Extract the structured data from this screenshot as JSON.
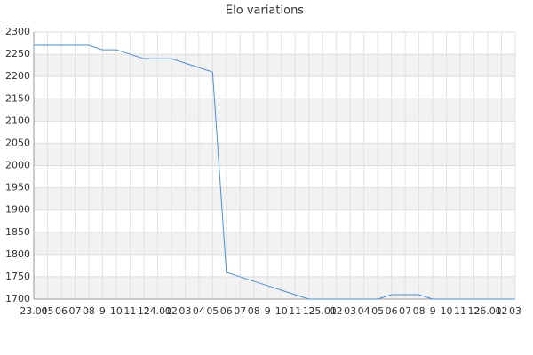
{
  "chart_data": {
    "type": "line",
    "title": "Elo variations",
    "categories": [
      "23.04",
      "05",
      "06",
      "07",
      "08",
      "9",
      "10",
      "11",
      "12",
      "24.01",
      "02",
      "03",
      "04",
      "05",
      "06",
      "07",
      "08",
      "9",
      "10",
      "11",
      "12",
      "25.01",
      "02",
      "03",
      "04",
      "05",
      "06",
      "07",
      "08",
      "9",
      "10",
      "11",
      "12",
      "26.01",
      "02",
      "03"
    ],
    "values": [
      2270,
      2270,
      2270,
      2270,
      2270,
      2260,
      2260,
      2250,
      2240,
      2240,
      2240,
      2230,
      2220,
      2210,
      1760,
      1750,
      1740,
      1730,
      1720,
      1710,
      1700,
      1700,
      1700,
      1700,
      1700,
      1700,
      1710,
      1710,
      1710,
      1700,
      1700,
      1700,
      1700,
      1700,
      1700,
      1700
    ],
    "color": "#4a8fdc",
    "ylim": [
      1700,
      2300
    ],
    "yticks": [
      1700,
      1750,
      1800,
      1850,
      1900,
      1950,
      2000,
      2050,
      2100,
      2150,
      2200,
      2250,
      2300
    ],
    "grid": true
  }
}
